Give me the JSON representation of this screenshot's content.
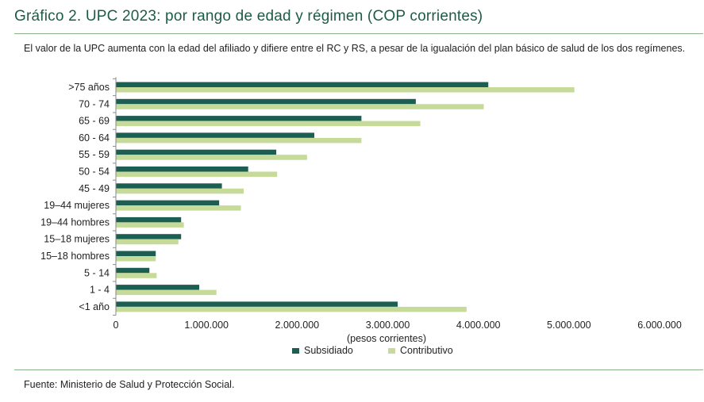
{
  "header": {
    "title": "Gráfico 2. UPC 2023: por rango de edad y régimen (COP corrientes)",
    "subtitle": "El valor de la UPC aumenta con la edad del afiliado y difiere entre el RC y RS, a pesar de la igualación del plan básico de salud de los dos regímenes."
  },
  "footer": {
    "source": "Fuente: Ministerio de Salud y Protección Social."
  },
  "colors": {
    "subsidiado": "#1c5e52",
    "contributivo": "#c6da9a",
    "title": "#1e5b47",
    "rule": "#8cb08a"
  },
  "chart_data": {
    "type": "bar",
    "orientation": "horizontal",
    "categories": [
      ">75 años",
      "70 - 74",
      "65 - 69",
      "60 - 64",
      "55 - 59",
      "50 - 54",
      "45 - 49",
      "19–44 mujeres",
      "19–44 hombres",
      "15–18 mujeres",
      "15–18 hombres",
      "5 - 14",
      "1 - 4",
      "<1 año"
    ],
    "series": [
      {
        "name": "Subsidiado",
        "color": "#1c5e52",
        "values": [
          4110000,
          3310000,
          2710000,
          2190000,
          1770000,
          1460000,
          1170000,
          1140000,
          720000,
          720000,
          440000,
          370000,
          920000,
          3110000
        ]
      },
      {
        "name": "Contributivo",
        "color": "#c6da9a",
        "values": [
          5060000,
          4060000,
          3360000,
          2710000,
          2110000,
          1780000,
          1410000,
          1380000,
          750000,
          690000,
          440000,
          450000,
          1110000,
          3870000
        ]
      }
    ],
    "xlabel": "(pesos corrientes)",
    "xlim": [
      0,
      6000000
    ],
    "xticks": [
      0,
      1000000,
      2000000,
      3000000,
      4000000,
      5000000,
      6000000
    ],
    "xtick_labels": [
      "0",
      "1.000.000",
      "2.000.000",
      "3.000.000",
      "4.000.000",
      "5.000.000",
      "6.000.000"
    ],
    "grid": false,
    "legend_position": "bottom"
  }
}
